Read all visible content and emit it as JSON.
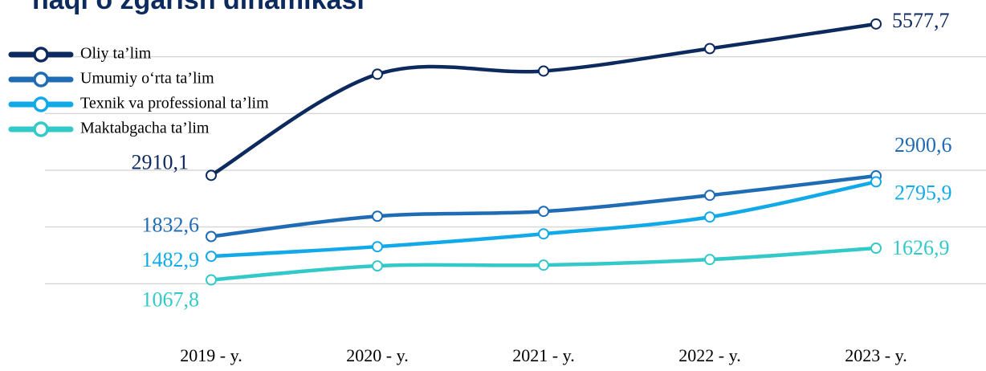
{
  "chart_data": {
    "type": "line",
    "title": "haqi o‘zgarish dinamikasi",
    "categories": [
      "2019 - y.",
      "2020 - y.",
      "2021 - y.",
      "2022 - y.",
      "2023 - y."
    ],
    "ylim": [
      0,
      6000
    ],
    "yticks": [
      1000,
      2000,
      3000,
      4000,
      5000
    ],
    "grid": true,
    "legend": "upper left",
    "series": [
      {
        "name": "Oliy ta’lim",
        "color": "#0d2a5e",
        "values": [
          2910.1,
          4692,
          4748,
          5144,
          5577.7
        ],
        "value_labels": [
          "2910,1",
          null,
          null,
          null,
          "5577,7"
        ]
      },
      {
        "name": "Umumiy o‘rta ta’lim",
        "color": "#1f6cb5",
        "values": [
          1832.6,
          2190,
          2275,
          2558,
          2900.6
        ],
        "value_labels": [
          "1832,6",
          null,
          null,
          null,
          "2900,6"
        ]
      },
      {
        "name": "Texnik va professional ta’lim",
        "color": "#12a9e8",
        "values": [
          1482.9,
          1653,
          1879,
          2176,
          2795.9
        ],
        "value_labels": [
          "1482,9",
          null,
          null,
          null,
          "2795,9"
        ]
      },
      {
        "name": "Maktabgacha ta’lim",
        "color": "#33c9c9",
        "values": [
          1067.8,
          1314,
          1328,
          1427,
          1626.9
        ],
        "value_labels": [
          "1067,8",
          null,
          null,
          null,
          "1626,9"
        ]
      }
    ]
  }
}
